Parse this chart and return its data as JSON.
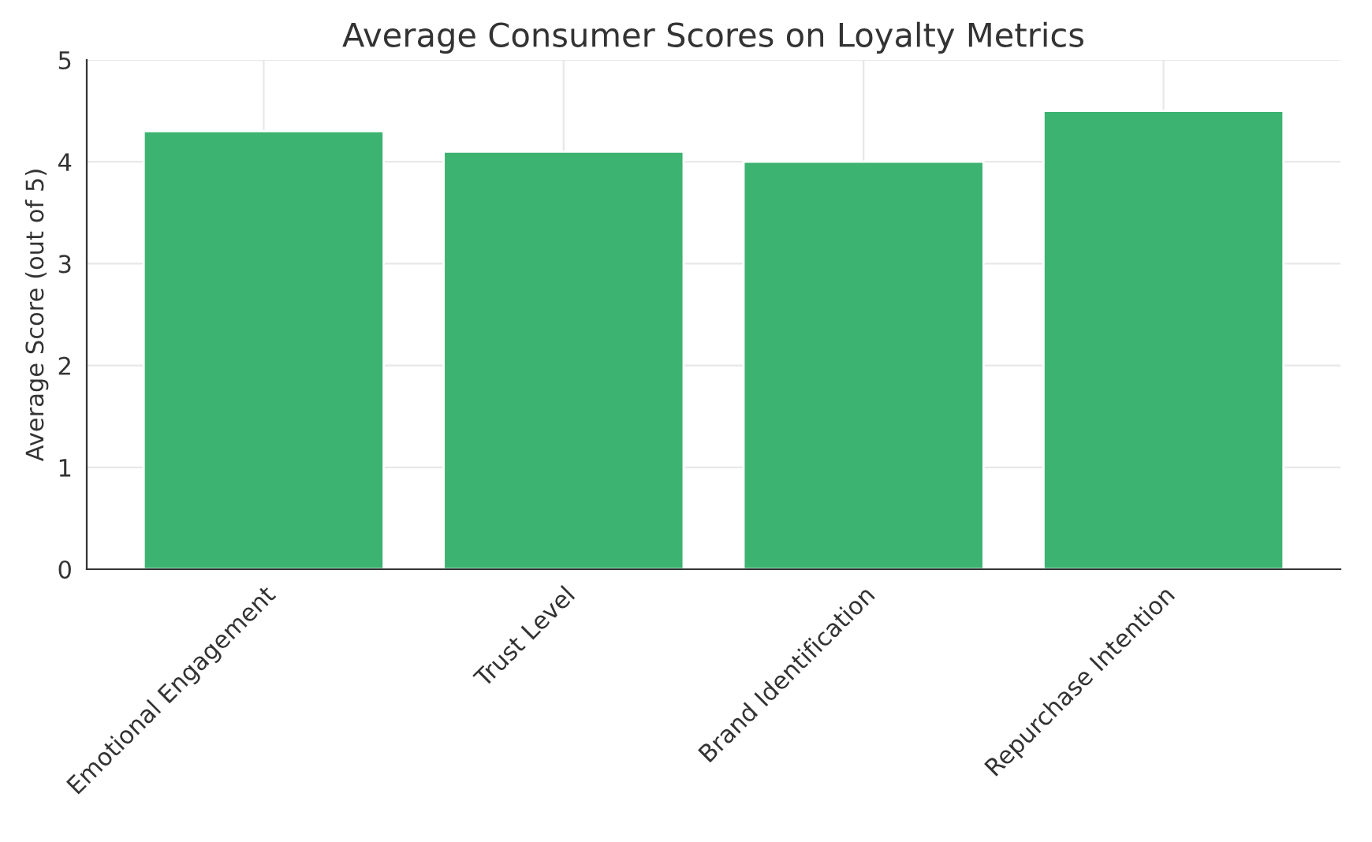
{
  "chart_data": {
    "type": "bar",
    "title": "Average Consumer Scores on Loyalty Metrics",
    "ylabel": "Average Score (out of 5)",
    "categories": [
      "Emotional Engagement",
      "Trust Level",
      "Brand Identification",
      "Repurchase Intention"
    ],
    "values": [
      4.3,
      4.1,
      4.0,
      4.5
    ],
    "color": "#3cb371",
    "ylim": [
      0,
      5
    ],
    "yticks": [
      0,
      1,
      2,
      3,
      4,
      5
    ],
    "grid": true
  }
}
